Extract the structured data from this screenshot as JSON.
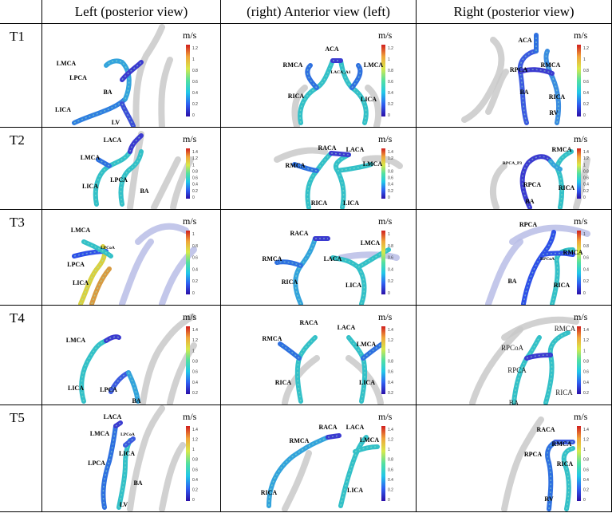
{
  "headers": {
    "corner": "",
    "columns": [
      "Left (posterior view)",
      "(right) Anterior view (left)",
      "Right (posterior view)"
    ]
  },
  "colorbar": {
    "unit": "m/s",
    "gradient": [
      "#2b0fa8",
      "#2f5ef0",
      "#21c7e8",
      "#52e0a0",
      "#d8e84a",
      "#f0a53a",
      "#d11f1f"
    ]
  },
  "rows": [
    {
      "label": "T1",
      "panels": [
        {
          "ticks": [
            "1.2",
            "1",
            "0.8",
            "0.6",
            "0.4",
            "0.2",
            "0"
          ],
          "vessels": [
            "LMCA",
            "LPCA",
            "BA",
            "LICA",
            "LV"
          ]
        },
        {
          "ticks": [
            "1.2",
            "1",
            "0.8",
            "0.6",
            "0.4",
            "0.2",
            "0"
          ],
          "vessels": [
            "ACA",
            "RMCA",
            "LMCA",
            "LACA_A1",
            "RICA",
            "LICA"
          ]
        },
        {
          "ticks": [
            "1.2",
            "1",
            "0.8",
            "0.6",
            "0.4",
            "0.2",
            "0"
          ],
          "vessels": [
            "ACA",
            "RPCA",
            "RMCA",
            "BA",
            "RICA",
            "RV"
          ]
        }
      ]
    },
    {
      "label": "T2",
      "panels": [
        {
          "ticks": [
            "1.4",
            "1.2",
            "1",
            "0.8",
            "0.6",
            "0.4",
            "0.2",
            "0"
          ],
          "vessels": [
            "LACA",
            "LMCA",
            "LICA",
            "LPCA",
            "BA"
          ]
        },
        {
          "ticks": [
            "1.4",
            "1.2",
            "1",
            "0.8",
            "0.6",
            "0.4",
            "0.2",
            "0"
          ],
          "vessels": [
            "RACA",
            "LACA",
            "RMCA",
            "LMCA",
            "RICA",
            "LICA"
          ]
        },
        {
          "ticks": [
            "1.4",
            "1.2",
            "1",
            "0.8",
            "0.6",
            "0.4",
            "0.2",
            "0"
          ],
          "vessels": [
            "RPCA_P3",
            "RMCA",
            "RPCA",
            "RICA",
            "BA"
          ]
        }
      ]
    },
    {
      "label": "T3",
      "panels": [
        {
          "ticks": [
            "1",
            "0.8",
            "0.6",
            "0.4",
            "0.2",
            "0"
          ],
          "vessels": [
            "LMCA",
            "LPCoA",
            "LPCA",
            "LICA"
          ]
        },
        {
          "ticks": [
            "1",
            "0.8",
            "0.6",
            "0.4",
            "0.2",
            "0"
          ],
          "vessels": [
            "RACA",
            "LMCA",
            "RMCA",
            "LACA",
            "RICA",
            "LICA"
          ]
        },
        {
          "ticks": [
            "1",
            "0.8",
            "0.6",
            "0.4",
            "0.2",
            "0"
          ],
          "vessels": [
            "RPCA",
            "RMCA",
            "RPCoA",
            "BA",
            "RICA"
          ]
        }
      ]
    },
    {
      "label": "T4",
      "panels": [
        {
          "ticks": [
            "1.4",
            "1.2",
            "1",
            "0.8",
            "0.6",
            "0.4",
            "0.2"
          ],
          "vessels": [
            "LMCA",
            "LICA",
            "LPCA",
            "BA"
          ]
        },
        {
          "ticks": [
            "1.4",
            "1.2",
            "1",
            "0.8",
            "0.6",
            "0.4",
            "0.2"
          ],
          "vessels": [
            "RACA",
            "LACA",
            "RMCA",
            "LMCA",
            "RICA",
            "LICA"
          ]
        },
        {
          "ticks": [
            "1.4",
            "1.2",
            "1",
            "0.8",
            "0.6",
            "0.4",
            "0.2"
          ],
          "vessels": [
            "RMCA",
            "RPCoA",
            "RPCA",
            "BA",
            "RICA"
          ]
        }
      ]
    },
    {
      "label": "T5",
      "panels": [
        {
          "ticks": [
            "1.4",
            "1.2",
            "1",
            "0.8",
            "0.6",
            "0.4",
            "0.2",
            "0"
          ],
          "vessels": [
            "LACA",
            "LMCA",
            "LPCoA",
            "LPCA",
            "LICA",
            "BA",
            "LV"
          ]
        },
        {
          "ticks": [
            "1.4",
            "1.2",
            "1",
            "0.8",
            "0.6",
            "0.4",
            "0.2",
            "0"
          ],
          "vessels": [
            "RACA",
            "LACA",
            "RMCA",
            "LMCA",
            "RICA",
            "LICA"
          ]
        },
        {
          "ticks": [
            "1.4",
            "1.2",
            "1",
            "0.8",
            "0.6",
            "0.4",
            "0.2",
            "0"
          ],
          "vessels": [
            "RACA",
            "RMCA",
            "RPCA",
            "RICA",
            "RV"
          ]
        }
      ]
    }
  ]
}
